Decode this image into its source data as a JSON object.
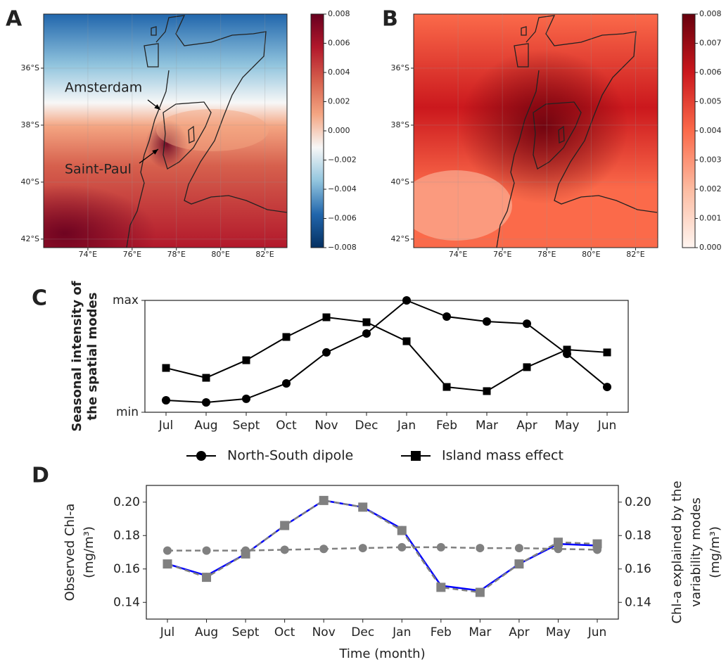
{
  "chart_data": [
    {
      "type": "map",
      "panel": "A",
      "xlim": [
        72,
        83
      ],
      "ylim": [
        -42.3,
        -34.1
      ],
      "xticks": [
        {
          "value": 74,
          "label": "74°E"
        },
        {
          "value": 76,
          "label": "76°E"
        },
        {
          "value": 78,
          "label": "78°E"
        },
        {
          "value": 80,
          "label": "80°E"
        },
        {
          "value": 82,
          "label": "82°E"
        }
      ],
      "yticks": [
        {
          "value": -36,
          "label": "36°S"
        },
        {
          "value": -38,
          "label": "38°S"
        },
        {
          "value": -40,
          "label": "40°S"
        },
        {
          "value": -42,
          "label": "42°S"
        }
      ],
      "clim": [
        -0.008,
        0.008
      ],
      "cticks": [
        {
          "value": -0.008,
          "label": "−0.008"
        },
        {
          "value": -0.006,
          "label": "−0.006"
        },
        {
          "value": -0.004,
          "label": "−0.004"
        },
        {
          "value": -0.002,
          "label": "−0.002"
        },
        {
          "value": 0,
          "label": "0.000"
        },
        0.002,
        0.004,
        0.006,
        0.008
      ],
      "colors": [
        "#053061",
        "#2166ac",
        "#92c5de",
        "#f7f7f7",
        "#f4a582",
        "#d6604d",
        "#b2182b",
        "#67001f"
      ],
      "annotations": [
        "Amsterdam",
        "Saint-Paul"
      ]
    },
    {
      "type": "map",
      "panel": "B",
      "xlim": [
        72,
        83
      ],
      "ylim": [
        -42.3,
        -34.1
      ],
      "xticks": [
        {
          "value": 74,
          "label": "74°E"
        },
        {
          "value": 76,
          "label": "76°E"
        },
        {
          "value": 78,
          "label": "78°E"
        },
        {
          "value": 80,
          "label": "80°E"
        },
        {
          "value": 82,
          "label": "82°E"
        }
      ],
      "yticks": [
        {
          "value": -36,
          "label": "36°S"
        },
        {
          "value": -38,
          "label": "38°S"
        },
        {
          "value": -40,
          "label": "40°S"
        },
        {
          "value": -42,
          "label": "42°S"
        }
      ],
      "clim": [
        0,
        0.008
      ],
      "cticks": [
        {
          "value": 0,
          "label": "0.000"
        },
        0.001,
        0.002,
        0.003,
        0.004,
        0.005,
        0.006,
        0.007,
        0.008
      ],
      "colors": [
        "#fff5f0",
        "#fcbba1",
        "#fb6a4a",
        "#cb181d",
        "#67000d"
      ]
    },
    {
      "type": "line",
      "panel": "C",
      "ylabel": [
        "Seasonal intensity of",
        "the spatial modes"
      ],
      "categories": [
        "Jul",
        "Aug",
        "Sept",
        "Oct",
        "Nov",
        "Dec",
        "Jan",
        "Feb",
        "Mar",
        "Apr",
        "May",
        "Jun"
      ],
      "ylim": [
        0,
        1
      ],
      "yticks": [
        {
          "value": 0,
          "label": "min"
        },
        {
          "value": 1,
          "label": "max"
        }
      ],
      "legend": "bottom",
      "series": [
        {
          "name": "North-South dipole",
          "color": "#000000",
          "marker": "circle",
          "values": [
            0.107,
            0.088,
            0.12,
            0.258,
            0.535,
            0.704,
            1.0,
            0.855,
            0.811,
            0.792,
            0.522,
            0.226
          ]
        },
        {
          "name": "Island mass effect",
          "color": "#000000",
          "marker": "square",
          "values": [
            0.396,
            0.308,
            0.465,
            0.673,
            0.849,
            0.805,
            0.635,
            0.226,
            0.189,
            0.403,
            0.56,
            0.535
          ]
        }
      ]
    },
    {
      "type": "line",
      "panel": "D",
      "xlabel": "Time (month)",
      "ylabel": [
        "Observed Chl-a",
        "(mg/m³)"
      ],
      "y2label": [
        "Chl-a explained by the",
        "variability modes",
        "(mg/m³)"
      ],
      "categories": [
        "Jul",
        "Aug",
        "Sept",
        "Oct",
        "Nov",
        "Dec",
        "Jan",
        "Feb",
        "Mar",
        "Apr",
        "May",
        "Jun"
      ],
      "ylim": [
        0.13,
        0.21
      ],
      "yticks": [
        0.14,
        0.16,
        0.18,
        {
          "value": 0.2,
          "label": "0.20"
        }
      ],
      "y2lim": [
        0.13,
        0.21
      ],
      "y2ticks": [
        0.14,
        0.16,
        0.18,
        {
          "value": 0.2,
          "label": "0.20"
        }
      ],
      "series": [
        {
          "color": "#0000ff",
          "marker": "circle",
          "values": [
            0.163,
            0.156,
            0.169,
            0.186,
            0.201,
            0.197,
            0.184,
            0.15,
            0.147,
            0.163,
            0.175,
            0.174
          ]
        },
        {
          "color": "#808080",
          "marker": "square",
          "linestyle": "dashed",
          "axis": "y2",
          "values": [
            0.163,
            0.155,
            0.169,
            0.186,
            0.201,
            0.197,
            0.183,
            0.149,
            0.146,
            0.163,
            0.176,
            0.175
          ]
        },
        {
          "color": "#808080",
          "marker": "circle",
          "linestyle": "dashed",
          "axis": "y2",
          "values": [
            0.171,
            0.171,
            0.171,
            0.1715,
            0.172,
            0.1725,
            0.173,
            0.173,
            0.1725,
            0.1725,
            0.172,
            0.1715
          ]
        }
      ]
    }
  ]
}
